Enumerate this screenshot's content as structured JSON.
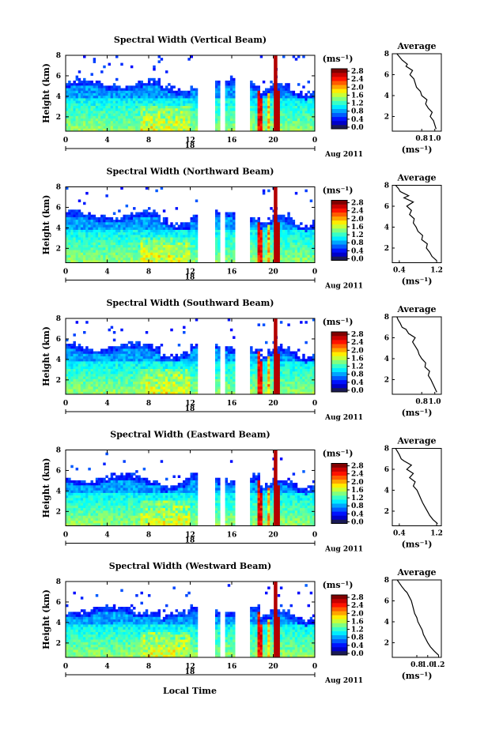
{
  "figure": {
    "x_axis_label": "Local Time",
    "date_label": "Aug 2011",
    "day_label": "18",
    "profile_title": "Average",
    "unit_label": "(ms⁻¹)"
  },
  "chart_data": [
    {
      "type": "heatmap",
      "title": "Spectral Width (Vertical Beam)",
      "ylabel": "Height (km)",
      "xlabel": "Local Time",
      "x_ticks": [
        "0",
        "4",
        "8",
        "12",
        "16",
        "20",
        "0"
      ],
      "y_ticks": [
        "2",
        "4",
        "6",
        "8"
      ],
      "xlim": [
        0,
        24
      ],
      "ylim": [
        0.6,
        8.0
      ],
      "colorbar": {
        "label": "(ms⁻¹)",
        "ticks": [
          "0.0",
          "0.4",
          "0.8",
          "1.2",
          "1.6",
          "2.0",
          "2.4",
          "2.8"
        ],
        "range": [
          0,
          3.0
        ]
      },
      "profile": {
        "title": "Average",
        "xlabel": "(ms⁻¹)",
        "x_ticks": [
          "0.8",
          "1.0"
        ],
        "xlim": [
          0.35,
          1.1
        ],
        "ylim": [
          0.6,
          8.0
        ],
        "x": [
          1.02,
          1.0,
          0.98,
          0.93,
          0.96,
          0.9,
          0.86,
          0.88,
          0.8,
          0.78,
          0.72,
          0.7,
          0.68,
          0.62,
          0.66,
          0.56,
          0.58,
          0.5,
          0.46,
          0.42
        ],
        "y": [
          0.8,
          1.2,
          1.6,
          2.0,
          2.4,
          2.8,
          3.2,
          3.6,
          4.0,
          4.4,
          4.8,
          5.2,
          5.6,
          6.0,
          6.4,
          6.8,
          7.0,
          7.4,
          7.7,
          8.0
        ]
      }
    },
    {
      "type": "heatmap",
      "title": "Spectral Width (Northward Beam)",
      "ylabel": "Height (km)",
      "xlabel": "Local Time",
      "x_ticks": [
        "0",
        "4",
        "8",
        "12",
        "16",
        "20",
        "0"
      ],
      "y_ticks": [
        "2",
        "4",
        "6",
        "8"
      ],
      "xlim": [
        0,
        24
      ],
      "ylim": [
        0.6,
        8.0
      ],
      "colorbar": {
        "label": "(ms⁻¹)",
        "ticks": [
          "0.0",
          "0.4",
          "0.8",
          "1.2",
          "1.6",
          "2.0",
          "2.4",
          "2.8"
        ],
        "range": [
          0,
          3.0
        ]
      },
      "profile": {
        "title": "Average",
        "xlabel": "(ms⁻¹)",
        "x_ticks": [
          "0.4",
          "1.2"
        ],
        "xlim": [
          0.25,
          1.3
        ],
        "ylim": [
          0.6,
          8.0
        ],
        "x": [
          1.2,
          1.1,
          1.05,
          0.98,
          1.0,
          0.88,
          0.9,
          0.8,
          0.76,
          0.7,
          0.72,
          0.62,
          0.66,
          0.56,
          0.7,
          0.5,
          0.6,
          0.42,
          0.38,
          0.32
        ],
        "y": [
          0.8,
          1.2,
          1.6,
          2.0,
          2.4,
          2.8,
          3.2,
          3.6,
          4.0,
          4.4,
          4.8,
          5.2,
          5.6,
          6.0,
          6.4,
          6.8,
          7.0,
          7.4,
          7.7,
          8.0
        ]
      }
    },
    {
      "type": "heatmap",
      "title": "Spectral Width (Southward Beam)",
      "ylabel": "Height (km)",
      "xlabel": "Local Time",
      "x_ticks": [
        "0",
        "4",
        "8",
        "12",
        "16",
        "20",
        "0"
      ],
      "y_ticks": [
        "2",
        "4",
        "6",
        "8"
      ],
      "xlim": [
        0,
        24
      ],
      "ylim": [
        0.6,
        8.0
      ],
      "colorbar": {
        "label": "(ms⁻¹)",
        "ticks": [
          "0.0",
          "0.4",
          "0.8",
          "1.2",
          "1.6",
          "2.0",
          "2.4",
          "2.8"
        ],
        "range": [
          0,
          3.0
        ]
      },
      "profile": {
        "title": "Average",
        "xlabel": "(ms⁻¹)",
        "x_ticks": [
          "0.8",
          "1.0"
        ],
        "xlim": [
          0.35,
          1.1
        ],
        "ylim": [
          0.6,
          8.0
        ],
        "x": [
          1.03,
          1.0,
          0.97,
          0.94,
          0.9,
          0.92,
          0.85,
          0.86,
          0.8,
          0.76,
          0.74,
          0.7,
          0.66,
          0.7,
          0.6,
          0.56,
          0.5,
          0.47,
          0.44,
          0.42
        ],
        "y": [
          0.8,
          1.2,
          1.6,
          2.0,
          2.4,
          2.8,
          3.2,
          3.6,
          4.0,
          4.4,
          4.8,
          5.2,
          5.6,
          6.0,
          6.4,
          6.8,
          7.0,
          7.4,
          7.7,
          8.0
        ]
      }
    },
    {
      "type": "heatmap",
      "title": "Spectral Width (Eastward Beam)",
      "ylabel": "Height (km)",
      "xlabel": "Local Time",
      "x_ticks": [
        "0",
        "4",
        "8",
        "12",
        "16",
        "20",
        "0"
      ],
      "y_ticks": [
        "2",
        "4",
        "6",
        "8"
      ],
      "xlim": [
        0,
        24
      ],
      "ylim": [
        0.6,
        8.0
      ],
      "colorbar": {
        "label": "(ms⁻¹)",
        "ticks": [
          "0.0",
          "0.4",
          "0.8",
          "1.2",
          "1.6",
          "2.0",
          "2.4",
          "2.8"
        ],
        "range": [
          0,
          3.0
        ]
      },
      "profile": {
        "title": "Average",
        "xlabel": "(ms⁻¹)",
        "x_ticks": [
          "0.4",
          "1.2"
        ],
        "xlim": [
          0.25,
          1.3
        ],
        "ylim": [
          0.6,
          8.0
        ],
        "x": [
          1.22,
          1.12,
          1.05,
          1.0,
          0.95,
          0.9,
          0.86,
          0.82,
          0.78,
          0.7,
          0.74,
          0.62,
          0.7,
          0.56,
          0.66,
          0.5,
          0.44,
          0.4,
          0.36,
          0.32
        ],
        "y": [
          0.8,
          1.2,
          1.6,
          2.0,
          2.4,
          2.8,
          3.2,
          3.6,
          4.0,
          4.4,
          4.8,
          5.2,
          5.6,
          6.0,
          6.4,
          6.8,
          7.0,
          7.4,
          7.7,
          8.0
        ]
      }
    },
    {
      "type": "heatmap",
      "title": "Spectral Width (Westward Beam)",
      "ylabel": "Height (km)",
      "xlabel": "Local Time",
      "x_ticks": [
        "0",
        "4",
        "8",
        "12",
        "16",
        "20",
        "0"
      ],
      "y_ticks": [
        "2",
        "4",
        "6",
        "8"
      ],
      "xlim": [
        0,
        24
      ],
      "ylim": [
        0.6,
        8.0
      ],
      "colorbar": {
        "label": "(ms⁻¹)",
        "ticks": [
          "0.0",
          "0.4",
          "0.8",
          "1.2",
          "1.6",
          "2.0",
          "2.4",
          "2.8"
        ],
        "range": [
          0,
          3.0
        ]
      },
      "profile": {
        "title": "Average",
        "xlabel": "(ms⁻¹)",
        "x_ticks": [
          "0.8",
          "1.0",
          "1.2"
        ],
        "xlim": [
          0.35,
          1.25
        ],
        "ylim": [
          0.6,
          8.0
        ],
        "x": [
          1.2,
          1.12,
          1.05,
          1.0,
          0.96,
          0.92,
          0.9,
          0.86,
          0.82,
          0.8,
          0.76,
          0.74,
          0.72,
          0.7,
          0.66,
          0.62,
          0.58,
          0.52,
          0.48,
          0.44
        ],
        "y": [
          0.8,
          1.2,
          1.6,
          2.0,
          2.4,
          2.8,
          3.2,
          3.6,
          4.0,
          4.4,
          4.8,
          5.2,
          5.6,
          6.0,
          6.4,
          6.8,
          7.0,
          7.4,
          7.7,
          8.0
        ]
      }
    }
  ]
}
